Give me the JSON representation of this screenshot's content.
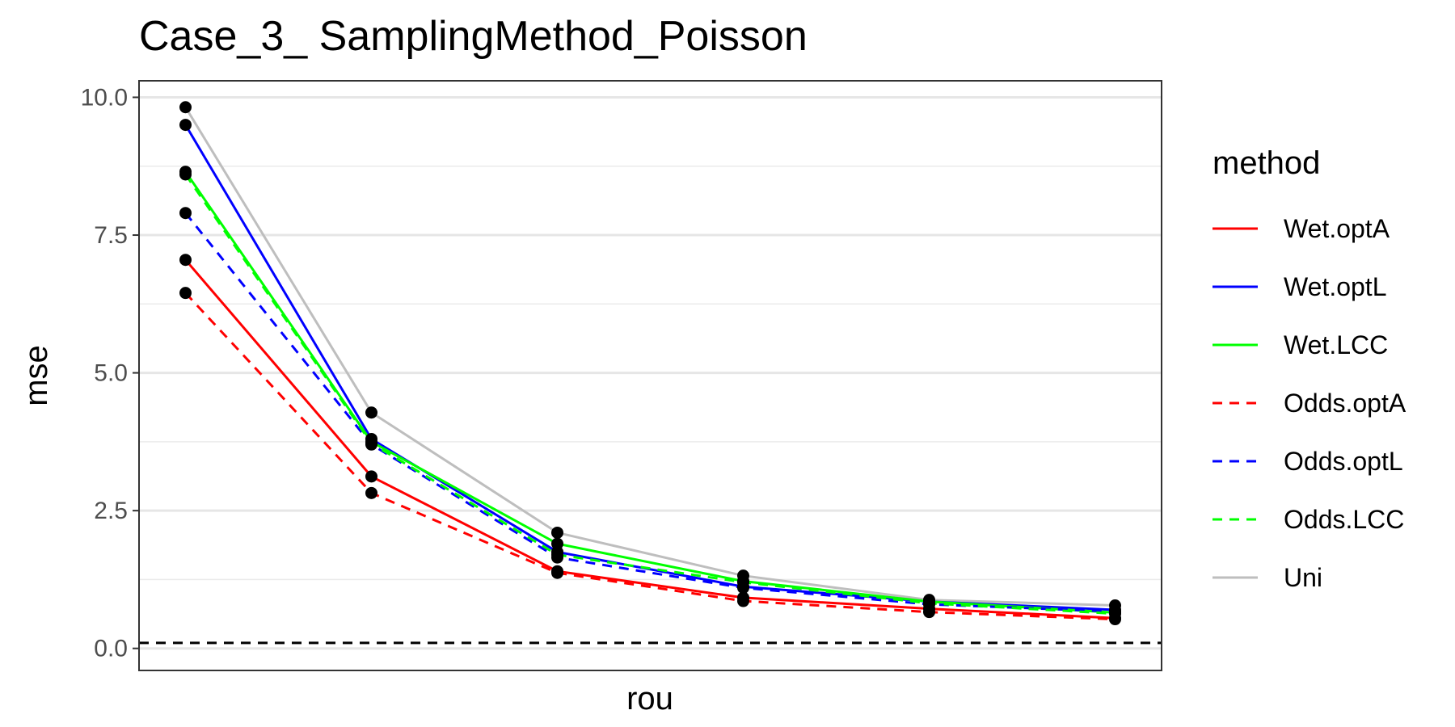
{
  "chart_data": {
    "type": "line",
    "title": "Case_3_ SamplingMethod_Poisson",
    "xlabel": "rou",
    "ylabel": "mse",
    "x": [
      1,
      2,
      3,
      4,
      5,
      6
    ],
    "xlim": [
      0.75,
      6.25
    ],
    "ylim": [
      -0.4,
      10.3
    ],
    "yticks": [
      0.0,
      2.5,
      5.0,
      7.5,
      10.0
    ],
    "ytick_labels": [
      "0.0",
      "2.5",
      "5.0",
      "7.5",
      "10.0"
    ],
    "xticks_shown": false,
    "grid": true,
    "reference_line": {
      "y": 0.1,
      "style": "dashed",
      "color": "#000000"
    },
    "legend": {
      "title": "method",
      "position": "right"
    },
    "series": [
      {
        "name": "Wet.optA",
        "color": "#ff0000",
        "dash": "solid",
        "values": [
          7.05,
          3.12,
          1.4,
          0.92,
          0.72,
          0.55
        ]
      },
      {
        "name": "Wet.optL",
        "color": "#0000ff",
        "dash": "solid",
        "values": [
          9.5,
          3.8,
          1.75,
          1.12,
          0.85,
          0.7
        ]
      },
      {
        "name": "Wet.LCC",
        "color": "#00ff00",
        "dash": "solid",
        "values": [
          8.65,
          3.75,
          1.9,
          1.22,
          0.85,
          0.65
        ]
      },
      {
        "name": "Odds.optA",
        "color": "#ff0000",
        "dash": "dashed",
        "values": [
          6.45,
          2.82,
          1.37,
          0.86,
          0.66,
          0.53
        ]
      },
      {
        "name": "Odds.optL",
        "color": "#0000ff",
        "dash": "dashed",
        "values": [
          7.9,
          3.7,
          1.65,
          1.1,
          0.8,
          0.67
        ]
      },
      {
        "name": "Odds.LCC",
        "color": "#00ff00",
        "dash": "dashed",
        "values": [
          8.6,
          3.72,
          1.7,
          1.2,
          0.82,
          0.63
        ]
      },
      {
        "name": "Uni",
        "color": "#bebebe",
        "dash": "solid",
        "values": [
          9.82,
          4.28,
          2.1,
          1.32,
          0.88,
          0.78
        ]
      }
    ]
  }
}
